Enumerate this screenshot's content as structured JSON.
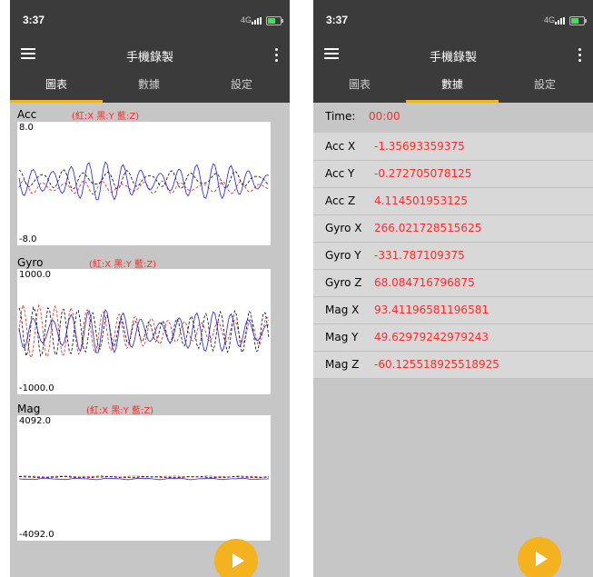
{
  "status_bar": {
    "time": "3:37",
    "network": "4G"
  },
  "app": {
    "title": "手機錄製"
  },
  "tabs": [
    {
      "label": "圖表"
    },
    {
      "label": "數據"
    },
    {
      "label": "設定"
    }
  ],
  "left_screen": {
    "active_tab": 0,
    "charts": [
      {
        "label": "Acc",
        "legend": "(紅:X  黑:Y  藍:Z)",
        "ymax": "8.0",
        "ymin": "-8.0"
      },
      {
        "label": "Gyro",
        "legend": "(紅:X  黑:Y  藍:Z)",
        "ymax": "1000.0",
        "ymin": "-1000.0"
      },
      {
        "label": "Mag",
        "legend": "(紅:X  黑:Y  藍:Z)",
        "ymax": "4092.0",
        "ymin": "-4092.0"
      }
    ]
  },
  "right_screen": {
    "active_tab": 1,
    "time_label": "Time:",
    "time_value": "00:00",
    "rows": [
      {
        "label": "Acc X",
        "value": "-1.35693359375"
      },
      {
        "label": "Acc Y",
        "value": "-0.272705078125"
      },
      {
        "label": "Acc Z",
        "value": "4.114501953125"
      },
      {
        "label": "Gyro X",
        "value": "266.021728515625"
      },
      {
        "label": "Gyro Y",
        "value": "-331.787109375"
      },
      {
        "label": "Gyro Z",
        "value": "68.084716796875"
      },
      {
        "label": "Mag X",
        "value": "93.41196581196581"
      },
      {
        "label": "Mag Y",
        "value": "49.62979242979243"
      },
      {
        "label": "Mag Z",
        "value": "-60.125518925518925"
      }
    ]
  },
  "chart_data": [
    {
      "type": "line",
      "title": "Acc",
      "ylim": [
        -8,
        8
      ],
      "series": [
        {
          "name": "紅:X",
          "color": "#e02020",
          "center": -0.5,
          "amplitude": 0.7,
          "period": 11
        },
        {
          "name": "黑:Y",
          "color": "#000000",
          "center": 0.5,
          "amplitude": 1.0,
          "period": 12
        },
        {
          "name": "藍:Z",
          "color": "#2020e0",
          "center": 0.3,
          "amplitude": 2.0,
          "period": 10
        }
      ]
    },
    {
      "type": "line",
      "title": "Gyro",
      "ylim": [
        -1000,
        1000
      ],
      "series": [
        {
          "name": "紅:X",
          "color": "#e02020",
          "center": 0,
          "amplitude": 320,
          "period": 9
        },
        {
          "name": "黑:Y",
          "color": "#000000",
          "center": 0,
          "amplitude": 300,
          "period": 8
        },
        {
          "name": "藍:Z",
          "color": "#2020e0",
          "center": 0,
          "amplitude": 280,
          "period": 10
        }
      ]
    },
    {
      "type": "line",
      "title": "Mag",
      "ylim": [
        -4092,
        4092
      ],
      "series": [
        {
          "name": "紅:X",
          "color": "#e02020",
          "center": 93,
          "amplitude": 30,
          "period": 20
        },
        {
          "name": "黑:Y",
          "color": "#000000",
          "center": 50,
          "amplitude": 30,
          "period": 24
        },
        {
          "name": "藍:Z",
          "color": "#2020e0",
          "center": -60,
          "amplitude": 40,
          "period": 18
        }
      ]
    }
  ],
  "colors": {
    "accent": "#f3b21e",
    "appbar": "#3b3b3b",
    "value_text": "#ff2a2a",
    "background": "#c6c6c6"
  }
}
